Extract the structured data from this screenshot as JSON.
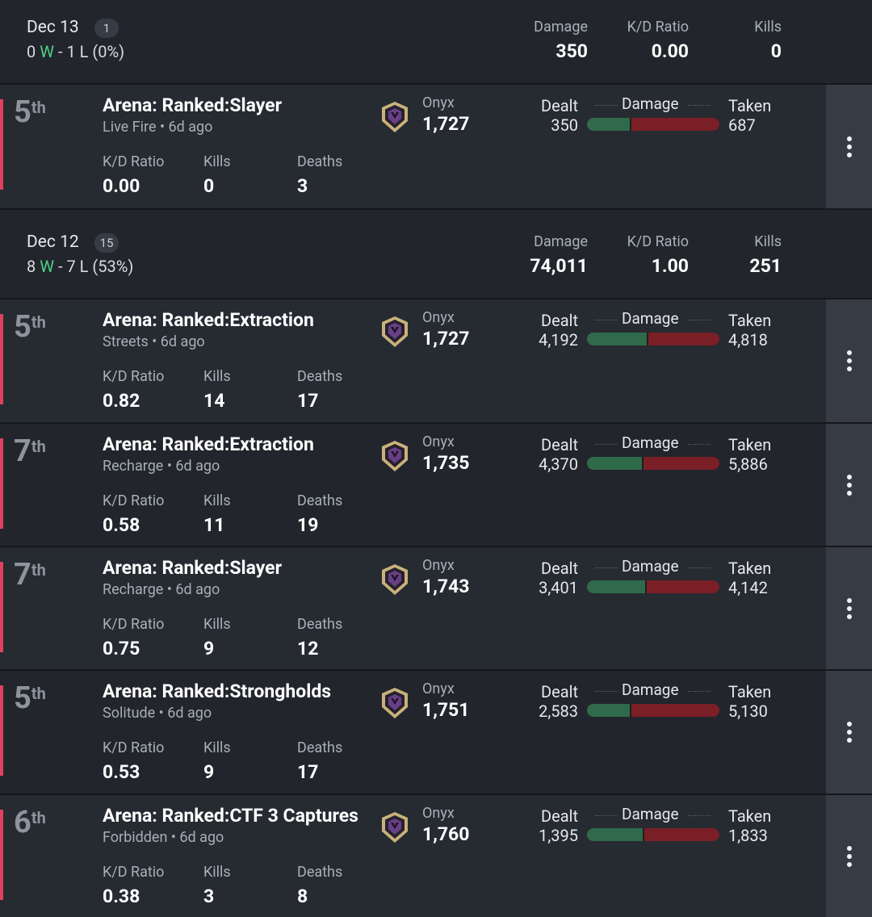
{
  "days": [
    {
      "date": "Dec 13",
      "count": "1",
      "wins": "0",
      "w_label": "W",
      "sep": "-",
      "losses": "1",
      "l_label": "L",
      "pct": "(0%)",
      "stats": {
        "damage_label": "Damage",
        "damage": "350",
        "kd_label": "K/D Ratio",
        "kd": "0.00",
        "kills_label": "Kills",
        "kills": "0"
      }
    },
    {
      "date": "Dec 12",
      "count": "15",
      "wins": "8",
      "w_label": "W",
      "sep": "-",
      "losses": "7",
      "l_label": "L",
      "pct": "(53%)",
      "stats": {
        "damage_label": "Damage",
        "damage": "74,011",
        "kd_label": "K/D Ratio",
        "kd": "1.00",
        "kills_label": "Kills",
        "kills": "251"
      }
    }
  ],
  "labels": {
    "kd": "K/D Ratio",
    "kills": "Kills",
    "deaths": "Deaths",
    "dealt": "Dealt",
    "damage": "Damage",
    "taken": "Taken",
    "sub_sep": " • "
  },
  "matches": [
    {
      "place": "5",
      "suffix": "th",
      "mode": "Arena: Ranked:Slayer",
      "map": "Live Fire",
      "when": "6d ago",
      "rank": "Onyx",
      "csr": "1,727",
      "dealt": "350",
      "taken": "687",
      "dealt_ratio": 0.337,
      "kd": "0.00",
      "kills": "0",
      "deaths": "3",
      "result": "loss"
    },
    {
      "place": "5",
      "suffix": "th",
      "mode": "Arena: Ranked:Extraction",
      "map": "Streets",
      "when": "6d ago",
      "rank": "Onyx",
      "csr": "1,727",
      "dealt": "4,192",
      "taken": "4,818",
      "dealt_ratio": 0.465,
      "kd": "0.82",
      "kills": "14",
      "deaths": "17",
      "result": "loss"
    },
    {
      "place": "7",
      "suffix": "th",
      "mode": "Arena: Ranked:Extraction",
      "map": "Recharge",
      "when": "6d ago",
      "rank": "Onyx",
      "csr": "1,735",
      "dealt": "4,370",
      "taken": "5,886",
      "dealt_ratio": 0.426,
      "kd": "0.58",
      "kills": "11",
      "deaths": "19",
      "result": "loss"
    },
    {
      "place": "7",
      "suffix": "th",
      "mode": "Arena: Ranked:Slayer",
      "map": "Recharge",
      "when": "6d ago",
      "rank": "Onyx",
      "csr": "1,743",
      "dealt": "3,401",
      "taken": "4,142",
      "dealt_ratio": 0.451,
      "kd": "0.75",
      "kills": "9",
      "deaths": "12",
      "result": "loss"
    },
    {
      "place": "5",
      "suffix": "th",
      "mode": "Arena: Ranked:Strongholds",
      "map": "Solitude",
      "when": "6d ago",
      "rank": "Onyx",
      "csr": "1,751",
      "dealt": "2,583",
      "taken": "5,130",
      "dealt_ratio": 0.335,
      "kd": "0.53",
      "kills": "9",
      "deaths": "17",
      "result": "loss"
    },
    {
      "place": "6",
      "suffix": "th",
      "mode": "Arena: Ranked:CTF 3 Captures",
      "map": "Forbidden",
      "when": "6d ago",
      "rank": "Onyx",
      "csr": "1,760",
      "dealt": "1,395",
      "taken": "1,833",
      "dealt_ratio": 0.432,
      "kd": "0.38",
      "kills": "3",
      "deaths": "8",
      "result": "loss"
    }
  ],
  "colors": {
    "win": "#4fd089",
    "loss_accent": "#e0415f",
    "dealt_bar": "#2f6a4a",
    "taken_bar": "#7a1f26"
  },
  "icons": {
    "rank": "onyx-rank-icon",
    "menu": "more-vertical-icon"
  }
}
